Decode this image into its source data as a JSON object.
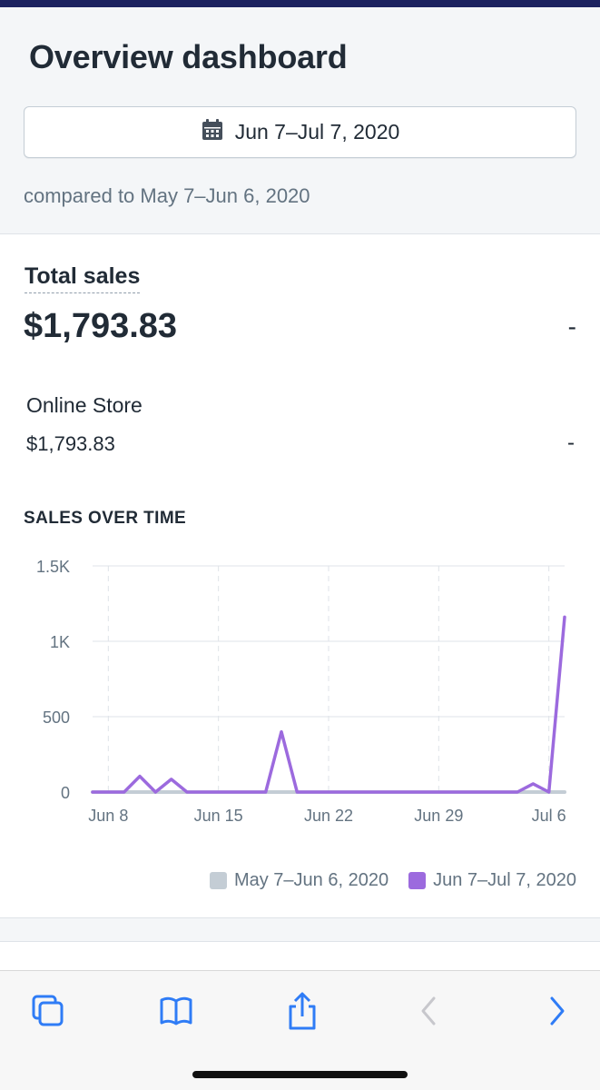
{
  "page": {
    "title": "Overview dashboard"
  },
  "date_range": {
    "label": "Jun 7–Jul 7, 2020",
    "icon": "calendar-icon"
  },
  "comparison": {
    "text": "compared to May 7–Jun 6, 2020"
  },
  "total_sales": {
    "label": "Total sales",
    "value": "$1,793.83",
    "change": "-"
  },
  "online_store": {
    "label": "Online Store",
    "value": "$1,793.83",
    "change": "-"
  },
  "sales_chart": {
    "heading": "SALES OVER TIME",
    "y_tick_labels": [
      "0",
      "500",
      "1K",
      "1.5K"
    ],
    "x_tick_labels": [
      "Jun 8",
      "Jun 15",
      "Jun 22",
      "Jun 29",
      "Jul 6"
    ],
    "legend": [
      {
        "label": "May 7–Jun 6, 2020",
        "color": "#c4cdd5"
      },
      {
        "label": "Jun 7–Jul 7, 2020",
        "color": "#9c6ade"
      }
    ]
  },
  "chart_data": {
    "type": "line",
    "title": "SALES OVER TIME",
    "xlabel": "",
    "ylabel": "",
    "ylim": [
      0,
      1500
    ],
    "y_ticks": [
      0,
      500,
      1000,
      1500
    ],
    "x_ticks": [
      "Jun 8",
      "Jun 15",
      "Jun 22",
      "Jun 29",
      "Jul 6"
    ],
    "grid": true,
    "legend_position": "bottom-right",
    "categories": [
      "Jun 7",
      "Jun 8",
      "Jun 9",
      "Jun 10",
      "Jun 11",
      "Jun 12",
      "Jun 13",
      "Jun 14",
      "Jun 15",
      "Jun 16",
      "Jun 17",
      "Jun 18",
      "Jun 19",
      "Jun 20",
      "Jun 21",
      "Jun 22",
      "Jun 23",
      "Jun 24",
      "Jun 25",
      "Jun 26",
      "Jun 27",
      "Jun 28",
      "Jun 29",
      "Jun 30",
      "Jul 1",
      "Jul 2",
      "Jul 3",
      "Jul 4",
      "Jul 5",
      "Jul 6",
      "Jul 7"
    ],
    "series": [
      {
        "name": "May 7–Jun 6, 2020",
        "color": "#c4cdd5",
        "values": [
          0,
          0,
          0,
          0,
          0,
          0,
          0,
          0,
          0,
          0,
          0,
          0,
          0,
          0,
          0,
          0,
          0,
          0,
          0,
          0,
          0,
          0,
          0,
          0,
          0,
          0,
          0,
          0,
          0,
          0,
          0
        ]
      },
      {
        "name": "Jun 7–Jul 7, 2020",
        "color": "#9c6ade",
        "values": [
          0,
          0,
          0,
          105,
          0,
          85,
          0,
          0,
          0,
          0,
          0,
          0,
          400,
          0,
          0,
          0,
          0,
          0,
          0,
          0,
          0,
          0,
          0,
          0,
          0,
          0,
          0,
          0,
          55,
          0,
          1160
        ]
      }
    ]
  },
  "toolbar": {
    "tabs_icon": "tabs-icon",
    "bookmarks_icon": "bookmarks-icon",
    "share_icon": "share-icon",
    "back_icon": "back-arrow-icon",
    "forward_icon": "forward-arrow-icon"
  }
}
